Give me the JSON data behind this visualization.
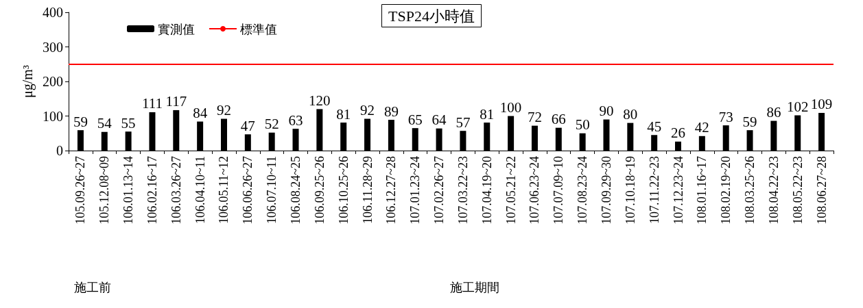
{
  "chart_data": {
    "type": "bar",
    "title": "TSP24小時值",
    "ylabel": "μg/m³",
    "categories": [
      "105.09.26~27",
      "105.12.08~09",
      "106.01.13~14",
      "106.02.16~17",
      "106.03.26~27",
      "106.04.10~11",
      "106.05.11~12",
      "106.06.26~27",
      "106.07.10~11",
      "106.08.24~25",
      "106.09.25~26",
      "106.10.25~26",
      "106.11.28~29",
      "106.12.27~28",
      "107.01.23~24",
      "107.02.26~27",
      "107.03.22~23",
      "107.04.19~20",
      "107.05.21~22",
      "107.06.23~24",
      "107.07.09~10",
      "107.08.23~24",
      "107.09.29~30",
      "107.10.18~19",
      "107.11.22~23",
      "107.12.23~24",
      "108.01.16~17",
      "108.02.19~20",
      "108.03.25~26",
      "108.04.22~23",
      "108.05.22~23",
      "108.06.27~28"
    ],
    "series": [
      {
        "name": "實測值",
        "color": "#000000",
        "values": [
          59,
          54,
          55,
          111,
          117,
          84,
          92,
          47,
          52,
          63,
          120,
          81,
          92,
          89,
          65,
          64,
          57,
          81,
          100,
          72,
          66,
          50,
          90,
          80,
          45,
          26,
          42,
          73,
          59,
          86,
          102,
          109
        ]
      }
    ],
    "data_labels": true,
    "ylim": [
      0,
      400
    ],
    "yticks": [
      0,
      100,
      200,
      300,
      400
    ],
    "ref_lines": [
      {
        "axis": "y",
        "value": 250,
        "label": "標準值",
        "color": "#ff0000"
      }
    ],
    "legend": "top left",
    "annotations": [
      "施工前",
      "施工期間"
    ]
  }
}
